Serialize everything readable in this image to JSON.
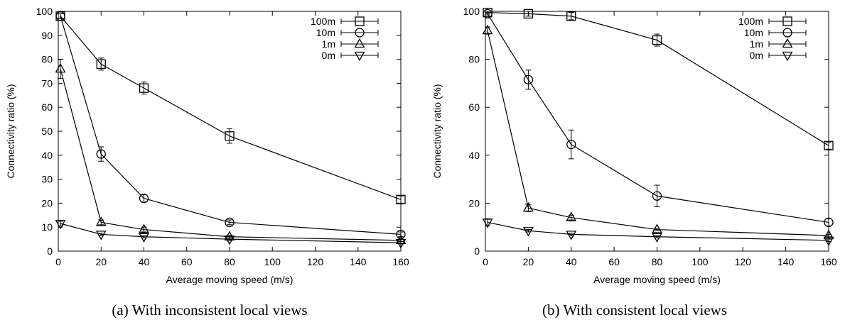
{
  "figure": {
    "colors": {
      "axes": "#000000",
      "series": "#000000",
      "background": "#ffffff"
    }
  },
  "chart_data": [
    {
      "type": "line",
      "caption": "(a) With inconsistent local views",
      "xlabel": "Average moving speed (m/s)",
      "ylabel": "Connectivity ratio (%)",
      "xlim": [
        0,
        160
      ],
      "ylim": [
        0,
        100
      ],
      "xticks": [
        0,
        20,
        40,
        60,
        80,
        100,
        120,
        140,
        160
      ],
      "yticks": [
        0,
        10,
        20,
        30,
        40,
        50,
        60,
        70,
        80,
        90,
        100
      ],
      "grid": false,
      "legend_position": "top-right",
      "x": [
        1,
        20,
        40,
        80,
        160
      ],
      "series": [
        {
          "name": "100m",
          "marker": "square",
          "values": [
            98,
            78,
            68,
            48,
            21.5
          ],
          "errors": [
            1,
            2.5,
            2.5,
            3,
            1.5
          ]
        },
        {
          "name": "10m",
          "marker": "circle",
          "values": [
            98,
            40.5,
            22,
            12,
            7
          ],
          "errors": [
            1,
            3,
            1.5,
            1,
            1
          ]
        },
        {
          "name": "1m",
          "marker": "triangle-up",
          "values": [
            76,
            12,
            9,
            6,
            4.5
          ],
          "errors": [
            4,
            1,
            1,
            0.5,
            0.5
          ]
        },
        {
          "name": "0m",
          "marker": "triangle-down",
          "values": [
            11.5,
            7,
            6,
            5,
            3.5
          ],
          "errors": [
            1,
            0.5,
            0.5,
            0.5,
            0.5
          ]
        }
      ]
    },
    {
      "type": "line",
      "caption": "(b) With consistent local views",
      "xlabel": "Average moving speed (m/s)",
      "ylabel": "Connectivity ratio (%)",
      "xlim": [
        0,
        160
      ],
      "ylim": [
        0,
        100
      ],
      "xticks": [
        0,
        20,
        40,
        60,
        80,
        100,
        120,
        140,
        160
      ],
      "yticks": [
        0,
        20,
        40,
        60,
        80,
        100
      ],
      "grid": false,
      "legend_position": "top-right",
      "x": [
        1,
        20,
        40,
        80,
        160
      ],
      "series": [
        {
          "name": "100m",
          "marker": "square",
          "values": [
            99.5,
            99,
            98,
            88,
            44
          ],
          "errors": [
            0.5,
            1,
            1.5,
            2.5,
            1.5
          ]
        },
        {
          "name": "10m",
          "marker": "circle",
          "values": [
            99,
            71.5,
            44.5,
            23,
            12
          ],
          "errors": [
            0.5,
            4,
            6,
            4.5,
            1.5
          ]
        },
        {
          "name": "1m",
          "marker": "triangle-up",
          "values": [
            92,
            18,
            14,
            9,
            6.5
          ],
          "errors": [
            1.5,
            1.5,
            1,
            0.5,
            0.5
          ]
        },
        {
          "name": "0m",
          "marker": "triangle-down",
          "values": [
            12,
            8.5,
            7,
            6,
            4.5
          ],
          "errors": [
            1.5,
            0.5,
            0.5,
            0.5,
            0.5
          ]
        }
      ]
    }
  ]
}
